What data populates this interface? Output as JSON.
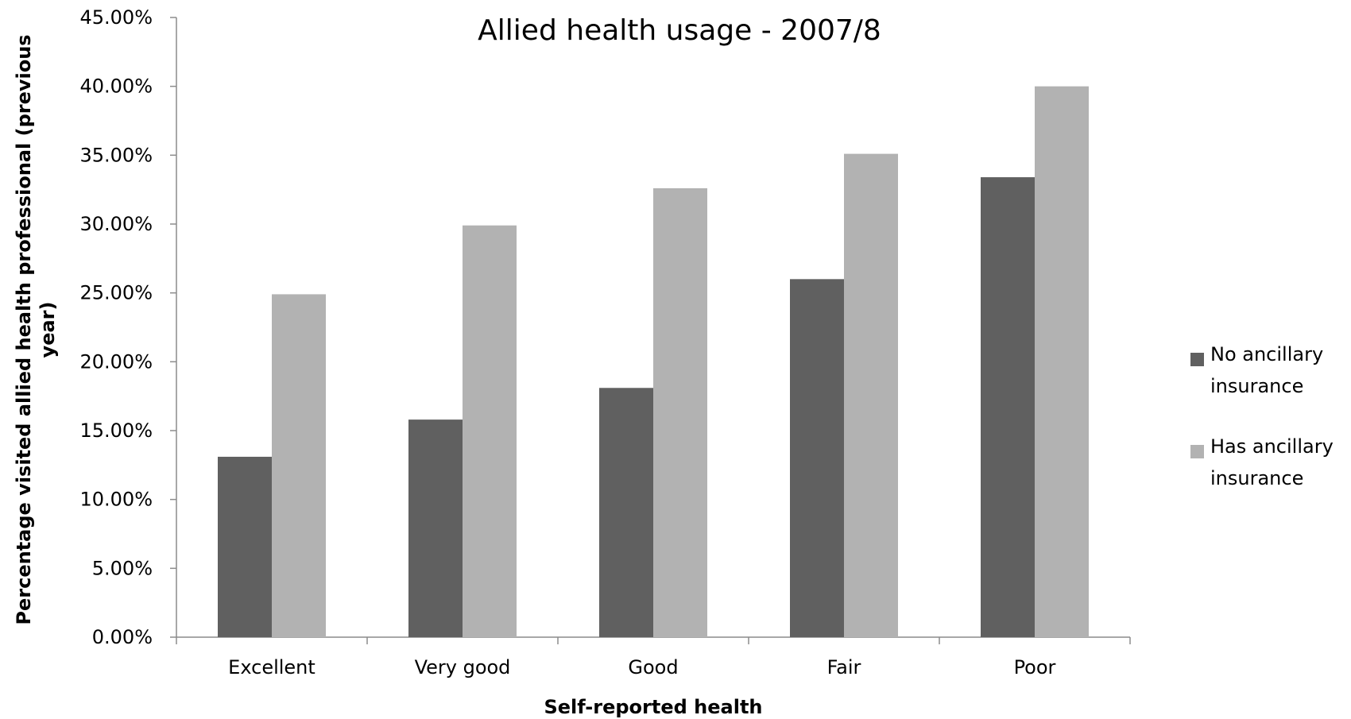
{
  "chart_data": {
    "type": "bar",
    "title": "Allied health usage - 2007/8",
    "xlabel": "Self-reported health",
    "ylabel_lines": [
      "Percentage visited allied health professional (previous",
      "year)"
    ],
    "categories": [
      "Excellent",
      "Very good",
      "Good",
      "Fair",
      "Poor"
    ],
    "series": [
      {
        "name_lines": [
          "No ancillary",
          "insurance"
        ],
        "color": "#606060",
        "values": [
          13.1,
          15.8,
          18.1,
          26.0,
          33.4
        ]
      },
      {
        "name_lines": [
          "Has ancillary",
          "insurance"
        ],
        "color": "#b2b2b2",
        "values": [
          24.9,
          29.9,
          32.6,
          35.1,
          40.0
        ]
      }
    ],
    "ylim": [
      0,
      45
    ],
    "ytick_step": 5,
    "ytick_labels": [
      "0.00%",
      "5.00%",
      "10.00%",
      "15.00%",
      "20.00%",
      "25.00%",
      "30.00%",
      "35.00%",
      "40.00%",
      "45.00%"
    ],
    "grid": false,
    "legend_position": "right"
  }
}
